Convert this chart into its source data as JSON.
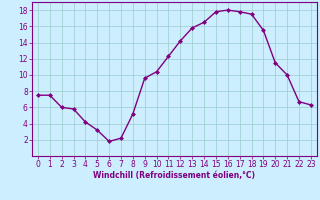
{
  "x": [
    0,
    1,
    2,
    3,
    4,
    5,
    6,
    7,
    8,
    9,
    10,
    11,
    12,
    13,
    14,
    15,
    16,
    17,
    18,
    19,
    20,
    21,
    22,
    23
  ],
  "y": [
    7.5,
    7.5,
    6.0,
    5.8,
    4.2,
    3.2,
    1.8,
    2.2,
    5.2,
    9.6,
    10.4,
    12.3,
    14.2,
    15.8,
    16.5,
    17.8,
    18.0,
    17.8,
    17.5,
    15.5,
    11.5,
    10.0,
    6.7,
    6.3
  ],
  "line_color": "#800080",
  "marker": "D",
  "marker_size": 2.0,
  "bg_color": "#cceeff",
  "grid_color": "#99cccc",
  "xlabel": "Windchill (Refroidissement éolien,°C)",
  "xlim": [
    -0.5,
    23.5
  ],
  "ylim": [
    0,
    19
  ],
  "yticks": [
    2,
    4,
    6,
    8,
    10,
    12,
    14,
    16,
    18
  ],
  "xticks": [
    0,
    1,
    2,
    3,
    4,
    5,
    6,
    7,
    8,
    9,
    10,
    11,
    12,
    13,
    14,
    15,
    16,
    17,
    18,
    19,
    20,
    21,
    22,
    23
  ],
  "tick_color": "#800080",
  "label_color": "#800080",
  "spine_color": "#800080",
  "linewidth": 1.0,
  "tick_fontsize": 5.5,
  "xlabel_fontsize": 5.5
}
